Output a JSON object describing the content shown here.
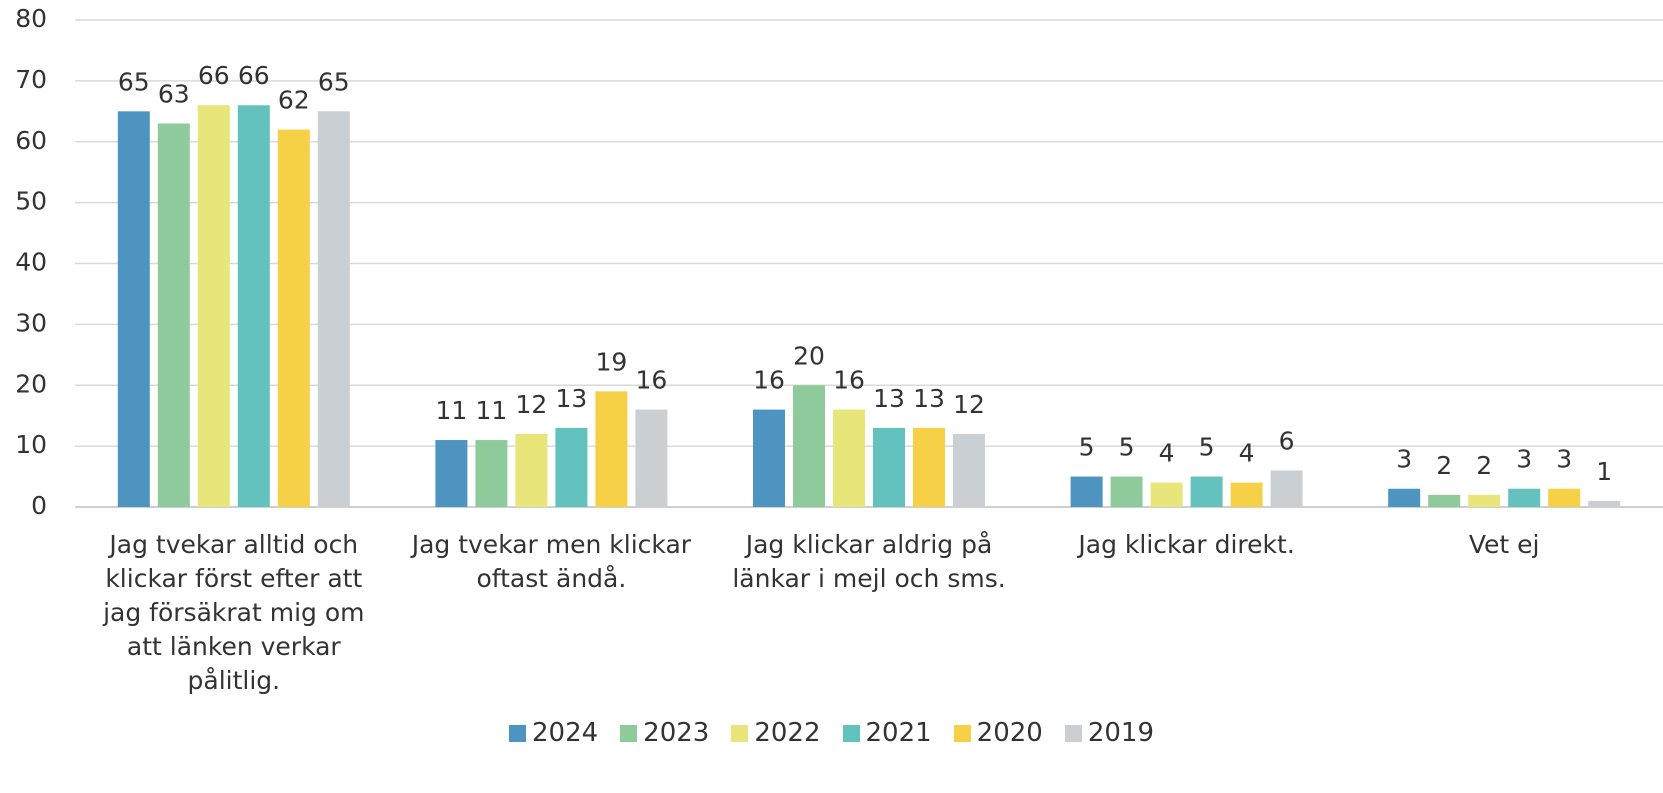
{
  "chart_data": {
    "type": "bar",
    "categories": [
      "Jag tvekar alltid och klickar först efter att jag försäkrat mig om att länken verkar pålitlig.",
      "Jag tvekar men klickar oftast ändå.",
      "Jag klickar aldrig på länkar i mejl och sms.",
      "Jag klickar direkt.",
      "Vet ej"
    ],
    "series": [
      {
        "name": "2024",
        "color": "#4e94c0",
        "values": [
          65,
          11,
          16,
          5,
          3
        ]
      },
      {
        "name": "2023",
        "color": "#8fca9a",
        "values": [
          63,
          11,
          20,
          5,
          2
        ]
      },
      {
        "name": "2022",
        "color": "#e8e57a",
        "values": [
          66,
          12,
          16,
          4,
          2
        ]
      },
      {
        "name": "2021",
        "color": "#63c1be",
        "values": [
          66,
          13,
          13,
          5,
          3
        ]
      },
      {
        "name": "2020",
        "color": "#f6d046",
        "values": [
          62,
          19,
          13,
          4,
          3
        ]
      },
      {
        "name": "2019",
        "color": "#cacfd3",
        "values": [
          65,
          16,
          12,
          6,
          1
        ]
      }
    ],
    "ylim": [
      0,
      80
    ],
    "yticks": [
      0,
      10,
      20,
      30,
      40,
      50,
      60,
      70,
      80
    ],
    "grid": true,
    "legend": "bottom"
  }
}
